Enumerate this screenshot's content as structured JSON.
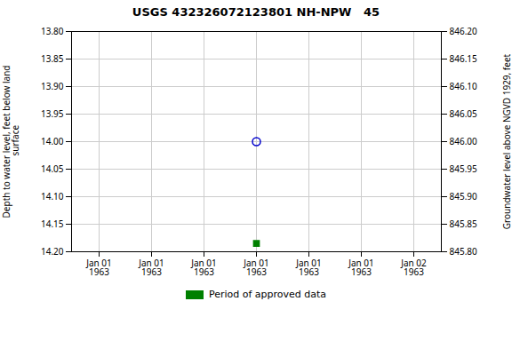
{
  "chart_data": {
    "type": "scatter",
    "title": "USGS 432326072123801 NH-NPW   45",
    "ylabel": "Depth to water level, feet below land\n surface",
    "y2label": "Groundwater level above NGVD 1929, feet",
    "categories": [
      "Jan 01\n1963",
      "Jan 01\n1963",
      "Jan 01\n1963",
      "Jan 01\n1963",
      "Jan 01\n1963",
      "Jan 01\n1963",
      "Jan 02\n1963"
    ],
    "series": [
      {
        "color": "#0000cc",
        "marker": "circle",
        "values": [
          null,
          null,
          null,
          14.0,
          null,
          null,
          null
        ]
      },
      {
        "name": "Period of approved data",
        "color": "#008000",
        "marker": "square",
        "values": [
          null,
          null,
          null,
          14.185,
          null,
          null,
          null
        ]
      }
    ],
    "ylim": [
      14.2,
      13.8
    ],
    "yticks": [
      {
        "value": 13.8,
        "label": "13.80"
      },
      {
        "value": 13.85,
        "label": "13.85"
      },
      {
        "value": 13.9,
        "label": "13.90"
      },
      {
        "value": 13.95,
        "label": "13.95"
      },
      {
        "value": 14.0,
        "label": "14.00"
      },
      {
        "value": 14.05,
        "label": "14.05"
      },
      {
        "value": 14.1,
        "label": "14.10"
      },
      {
        "value": 14.15,
        "label": "14.15"
      },
      {
        "value": 14.2,
        "label": "14.20"
      }
    ],
    "y2lim": [
      845.8,
      846.2
    ],
    "y2ticks": [
      {
        "value": 845.8,
        "label": "845.80"
      },
      {
        "value": 845.85,
        "label": "845.85"
      },
      {
        "value": 845.9,
        "label": "845.90"
      },
      {
        "value": 845.95,
        "label": "845.95"
      },
      {
        "value": 846.0,
        "label": "846.00"
      },
      {
        "value": 846.05,
        "label": "846.05"
      },
      {
        "value": 846.1,
        "label": "846.10"
      },
      {
        "value": 846.15,
        "label": "846.15"
      },
      {
        "value": 846.2,
        "label": "846.20"
      }
    ],
    "grid": true,
    "legend": "bottom"
  }
}
